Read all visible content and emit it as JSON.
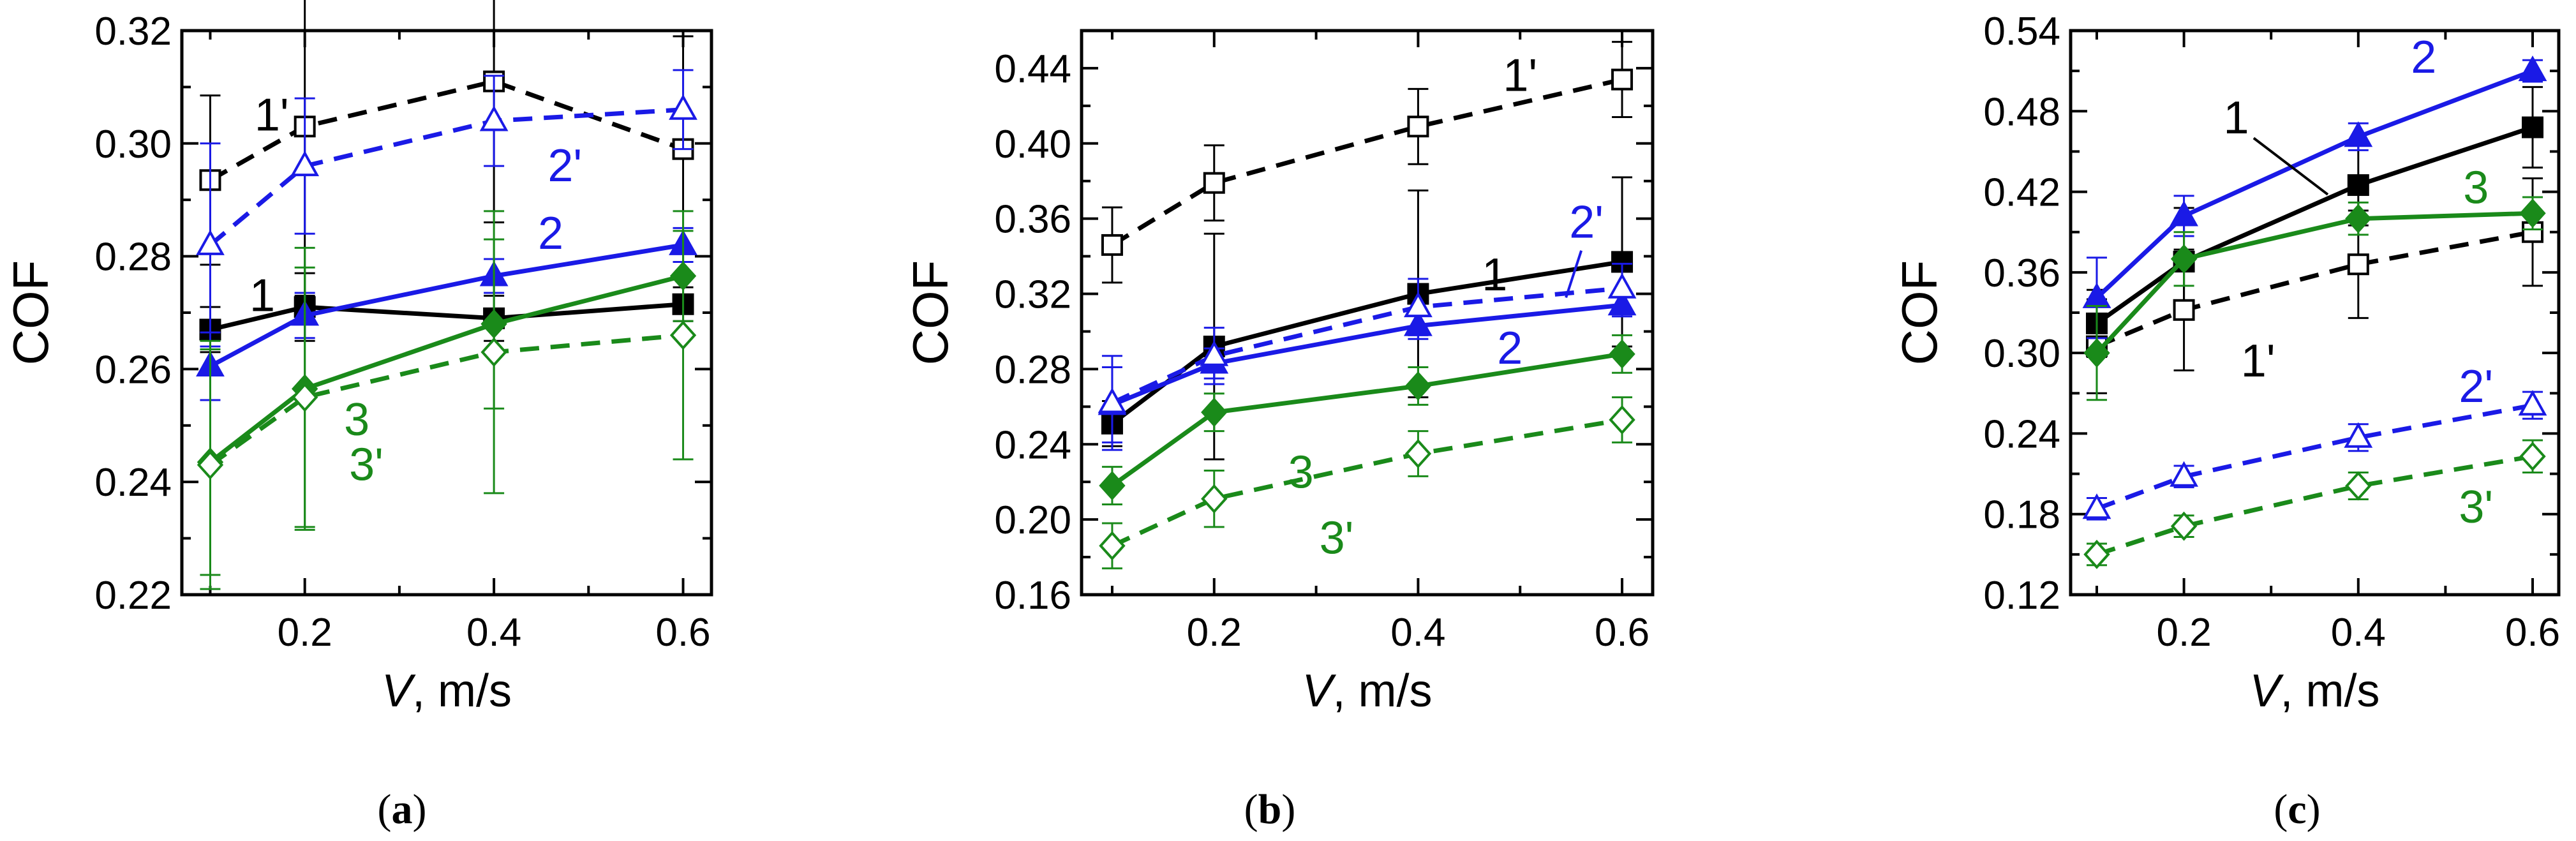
{
  "colors": {
    "black": "#000000",
    "blue": "#1a1ae6",
    "green": "#1a8a1a",
    "axis": "#000000"
  },
  "chart_data": [
    {
      "type": "line",
      "caption": "a",
      "xlabel_var": "V",
      "xlabel_unit": ", m/s",
      "ylabel": "COF",
      "xlim": [
        0.07,
        0.63
      ],
      "ylim": [
        0.22,
        0.32
      ],
      "xticks": [
        0.2,
        0.4,
        0.6
      ],
      "xtick_labels": [
        "0.2",
        "0.4",
        "0.6"
      ],
      "yticks": [
        0.22,
        0.24,
        0.26,
        0.28,
        0.3,
        0.32
      ],
      "ytick_labels": [
        "0.22",
        "0.24",
        "0.26",
        "0.28",
        "0.30",
        "0.32"
      ],
      "x": [
        0.1,
        0.2,
        0.4,
        0.6
      ],
      "series": [
        {
          "name": "1",
          "label": "1",
          "color": "black",
          "marker": "square",
          "filled": true,
          "dashed": false,
          "values": [
            0.267,
            0.271,
            0.269,
            0.2715
          ],
          "errors": [
            0.004,
            0.006,
            0.004,
            0.003
          ],
          "label_pos": [
            0.155,
            0.273
          ]
        },
        {
          "name": "1'",
          "label": "1'",
          "color": "black",
          "marker": "square",
          "filled": false,
          "dashed": true,
          "values": [
            0.2935,
            0.303,
            0.311,
            0.299
          ],
          "errors": [
            0.015,
            0.03,
            0.025,
            0.02
          ],
          "label_pos": [
            0.165,
            0.305
          ]
        },
        {
          "name": "2",
          "label": "2",
          "color": "blue",
          "marker": "triangle",
          "filled": true,
          "dashed": false,
          "values": [
            0.2605,
            0.2695,
            0.2765,
            0.282
          ],
          "errors": [
            0.006,
            0.004,
            0.003,
            0.003
          ],
          "label_pos": [
            0.46,
            0.284
          ]
        },
        {
          "name": "2'",
          "label": "2'",
          "color": "blue",
          "marker": "triangle",
          "filled": false,
          "dashed": true,
          "values": [
            0.282,
            0.296,
            0.304,
            0.306
          ],
          "errors": [
            0.018,
            0.012,
            0.008,
            0.007
          ],
          "label_pos": [
            0.475,
            0.296
          ]
        },
        {
          "name": "3",
          "label": "3",
          "color": "green",
          "marker": "diamond",
          "filled": true,
          "dashed": false,
          "values": [
            0.2435,
            0.2565,
            0.268,
            0.2765
          ],
          "errors": [
            0.02,
            0.025,
            0.015,
            0.008
          ],
          "label_pos": [
            0.255,
            0.251
          ]
        },
        {
          "name": "3'",
          "label": "3'",
          "color": "green",
          "marker": "diamond",
          "filled": false,
          "dashed": true,
          "values": [
            0.243,
            0.255,
            0.263,
            0.266
          ],
          "errors": [
            0.022,
            0.023,
            0.025,
            0.022
          ],
          "label_pos": [
            0.265,
            0.243
          ]
        }
      ]
    },
    {
      "type": "line",
      "caption": "b",
      "xlabel_var": "V",
      "xlabel_unit": ", m/s",
      "ylabel": "COF",
      "xlim": [
        0.07,
        0.63
      ],
      "ylim": [
        0.16,
        0.46
      ],
      "xticks": [
        0.2,
        0.4,
        0.6
      ],
      "xtick_labels": [
        "0.2",
        "0.4",
        "0.6"
      ],
      "yticks": [
        0.16,
        0.2,
        0.24,
        0.28,
        0.32,
        0.36,
        0.4,
        0.44
      ],
      "ytick_labels": [
        "0.16",
        "0.20",
        "0.24",
        "0.28",
        "0.32",
        "0.36",
        "0.40",
        "0.44"
      ],
      "x": [
        0.1,
        0.2,
        0.4,
        0.6
      ],
      "series": [
        {
          "name": "1",
          "label": "1",
          "color": "black",
          "marker": "square",
          "filled": true,
          "dashed": false,
          "values": [
            0.251,
            0.292,
            0.32,
            0.337
          ],
          "errors": [
            0.012,
            0.06,
            0.055,
            0.045
          ],
          "label_pos": [
            0.475,
            0.33
          ]
        },
        {
          "name": "1'",
          "label": "1'",
          "color": "black",
          "marker": "square",
          "filled": false,
          "dashed": true,
          "values": [
            0.346,
            0.379,
            0.409,
            0.434
          ],
          "errors": [
            0.02,
            0.02,
            0.02,
            0.02
          ],
          "label_pos": [
            0.5,
            0.436
          ]
        },
        {
          "name": "2",
          "label": "2",
          "color": "blue",
          "marker": "triangle",
          "filled": true,
          "dashed": false,
          "values": [
            0.261,
            0.283,
            0.303,
            0.314
          ],
          "errors": [
            0.02,
            0.008,
            0.007,
            0.006
          ],
          "label_pos": [
            0.49,
            0.291
          ]
        },
        {
          "name": "2'",
          "label": "2'",
          "color": "blue",
          "marker": "triangle",
          "filled": false,
          "dashed": true,
          "values": [
            0.262,
            0.287,
            0.313,
            0.323
          ],
          "errors": [
            0.025,
            0.015,
            0.015,
            0.013
          ],
          "label_pos": [
            0.565,
            0.358
          ]
        },
        {
          "name": "3",
          "label": "3",
          "color": "green",
          "marker": "diamond",
          "filled": true,
          "dashed": false,
          "values": [
            0.218,
            0.257,
            0.271,
            0.288
          ],
          "errors": [
            0.01,
            0.01,
            0.01,
            0.01
          ],
          "label_pos": [
            0.285,
            0.225
          ]
        },
        {
          "name": "3'",
          "label": "3'",
          "color": "green",
          "marker": "diamond",
          "filled": false,
          "dashed": true,
          "values": [
            0.186,
            0.211,
            0.235,
            0.253
          ],
          "errors": [
            0.012,
            0.015,
            0.012,
            0.012
          ],
          "label_pos": [
            0.32,
            0.19
          ]
        }
      ]
    },
    {
      "type": "line",
      "caption": "c",
      "xlabel_var": "V",
      "xlabel_unit": ", m/s",
      "ylabel": "COF",
      "xlim": [
        0.07,
        0.63
      ],
      "ylim": [
        0.12,
        0.54
      ],
      "xticks": [
        0.2,
        0.4,
        0.6
      ],
      "xtick_labels": [
        "0.2",
        "0.4",
        "0.6"
      ],
      "yticks": [
        0.12,
        0.18,
        0.24,
        0.3,
        0.36,
        0.42,
        0.48,
        0.54
      ],
      "ytick_labels": [
        "0.12",
        "0.18",
        "0.24",
        "0.30",
        "0.36",
        "0.42",
        "0.48",
        "0.54"
      ],
      "x": [
        0.1,
        0.2,
        0.4,
        0.6
      ],
      "series": [
        {
          "name": "1",
          "label": "1",
          "color": "black",
          "marker": "square",
          "filled": true,
          "dashed": false,
          "values": [
            0.322,
            0.368,
            0.425,
            0.468
          ],
          "errors": [
            0.025,
            0.04,
            0.03,
            0.03
          ],
          "label_pos": [
            0.26,
            0.475
          ]
        },
        {
          "name": "1'",
          "label": "1'",
          "color": "black",
          "marker": "square",
          "filled": false,
          "dashed": true,
          "values": [
            0.305,
            0.332,
            0.366,
            0.39
          ],
          "errors": [
            0.035,
            0.045,
            0.04,
            0.04
          ],
          "label_pos": [
            0.285,
            0.294
          ]
        },
        {
          "name": "2",
          "label": "2",
          "color": "blue",
          "marker": "triangle",
          "filled": true,
          "dashed": false,
          "values": [
            0.341,
            0.402,
            0.461,
            0.51
          ],
          "errors": [
            0.03,
            0.015,
            0.01,
            0.008
          ],
          "label_pos": [
            0.475,
            0.52
          ]
        },
        {
          "name": "2'",
          "label": "2'",
          "color": "blue",
          "marker": "triangle",
          "filled": false,
          "dashed": true,
          "values": [
            0.184,
            0.208,
            0.237,
            0.261
          ],
          "errors": [
            0.008,
            0.008,
            0.01,
            0.01
          ],
          "label_pos": [
            0.535,
            0.275
          ]
        },
        {
          "name": "3",
          "label": "3",
          "color": "green",
          "marker": "diamond",
          "filled": true,
          "dashed": false,
          "values": [
            0.3,
            0.37,
            0.4,
            0.404
          ],
          "errors": [
            0.035,
            0.02,
            0.012,
            0.012
          ],
          "label_pos": [
            0.535,
            0.423
          ]
        },
        {
          "name": "3'",
          "label": "3'",
          "color": "green",
          "marker": "diamond",
          "filled": false,
          "dashed": true,
          "values": [
            0.15,
            0.171,
            0.201,
            0.223
          ],
          "errors": [
            0.008,
            0.008,
            0.01,
            0.012
          ],
          "label_pos": [
            0.535,
            0.185
          ]
        }
      ]
    }
  ]
}
